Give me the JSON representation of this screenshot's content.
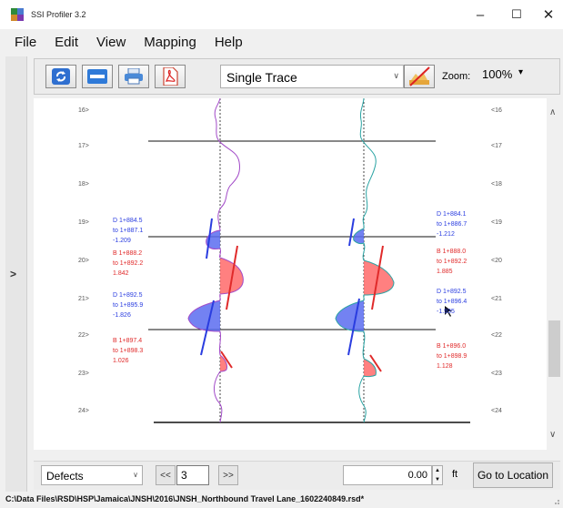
{
  "window": {
    "title": "SSI Profiler 3.2",
    "minimize": "–",
    "maximize": "☐",
    "close": "✕"
  },
  "menu": [
    "File",
    "Edit",
    "View",
    "Mapping",
    "Help"
  ],
  "side_panel": {
    "expand_glyph": ">"
  },
  "toolbar": {
    "buttons": [
      "refresh-icon",
      "ruler-icon",
      "print-icon",
      "pdf-icon",
      "profile-settings-icon"
    ],
    "trace_mode": "Single Trace",
    "zoom_label": "Zoom:",
    "zoom_value": "100%",
    "zoom_dropdown": "▾"
  },
  "profile": {
    "left_ticks": [
      "16>",
      "17>",
      "18>",
      "19>",
      "20>",
      "21>",
      "22>",
      "23>",
      "24>"
    ],
    "right_ticks": [
      "<16",
      "<17",
      "<18",
      "<19",
      "<20",
      "<21",
      "<22",
      "<23",
      "<24"
    ],
    "left_annotations": [
      {
        "lines": [
          "D 1+884.5",
          "to 1+887.1",
          "-1.209"
        ],
        "color": "#2a3de0"
      },
      {
        "lines": [
          "B 1+888.2",
          "to 1+892.2",
          "1.842"
        ],
        "color": "#e02a2a"
      },
      {
        "lines": [
          "D 1+892.5",
          "to 1+895.9",
          "-1.826"
        ],
        "color": "#2a3de0"
      },
      {
        "lines": [
          "B 1+897.4",
          "to 1+898.3",
          "1.026"
        ],
        "color": "#e02a2a"
      }
    ],
    "right_annotations": [
      {
        "lines": [
          "D 1+884.1",
          "to 1+886.7",
          "-1.212"
        ],
        "color": "#2a3de0"
      },
      {
        "lines": [
          "B 1+888.0",
          "to 1+892.2",
          "1.885"
        ],
        "color": "#e02a2a"
      },
      {
        "lines": [
          "D 1+892.5",
          "to 1+896.4",
          "-1.935"
        ],
        "color": "#2a3de0"
      },
      {
        "lines": [
          "B 1+896.0",
          "to 1+898.9",
          "1.128"
        ],
        "color": "#e02a2a"
      }
    ],
    "left_trace_color": "#a24ac8",
    "right_trace_color": "#2aa3a3",
    "bump_color": "#e02a2a",
    "dip_color": "#2a3de0"
  },
  "bottom": {
    "filter": "Defects",
    "prev": "<<",
    "page": "3",
    "next": ">>",
    "distance": "0.00",
    "unit": "ft",
    "go_label": "Go to Location"
  },
  "status": {
    "path": "C:\\Data Files\\RSD\\HSP\\Jamaica\\JNSH\\2016\\JNSH_Northbound Travel Lane_1602240849.rsd*"
  }
}
